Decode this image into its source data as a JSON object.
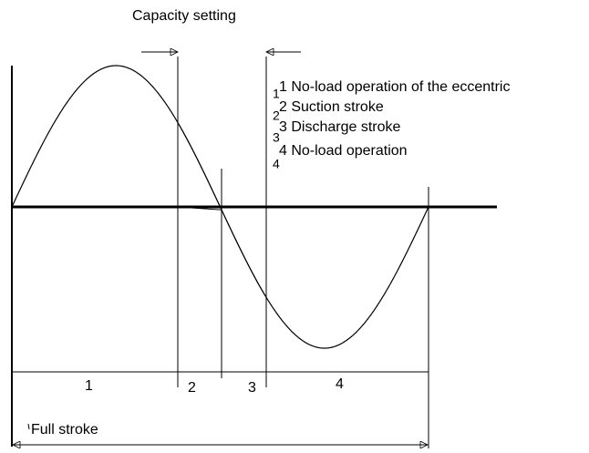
{
  "title": "Capacity setting",
  "legend": [
    "1 No-load operation of the eccentric",
    "2 Suction stroke",
    "3 Discharge stroke",
    "4 No-load operation"
  ],
  "legend_markers": [
    "1",
    "2",
    "3",
    "4"
  ],
  "segments": [
    "1",
    "2",
    "3",
    "4"
  ],
  "full_stroke": "Full stroke"
}
